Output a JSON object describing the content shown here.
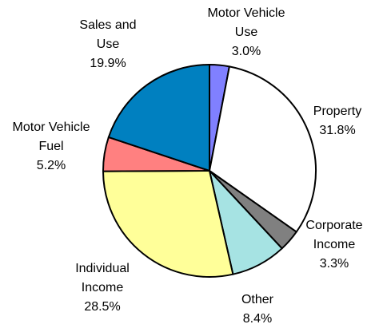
{
  "chart_data": {
    "type": "pie",
    "categories": [
      "Motor Vehicle Use",
      "Property",
      "Corporate Income",
      "Other",
      "Individual Income",
      "Motor Vehicle Fuel",
      "Sales and Use"
    ],
    "values": [
      3.0,
      31.8,
      3.3,
      8.4,
      28.5,
      5.2,
      19.9
    ],
    "value_labels": [
      "3.0%",
      "31.8%",
      "3.3%",
      "8.4%",
      "28.5%",
      "5.2%",
      "19.9%"
    ],
    "colors": [
      "#8080ff",
      "#ffffff",
      "#808080",
      "#a6e3e3",
      "#ffff99",
      "#ff8080",
      "#0080c0"
    ]
  }
}
